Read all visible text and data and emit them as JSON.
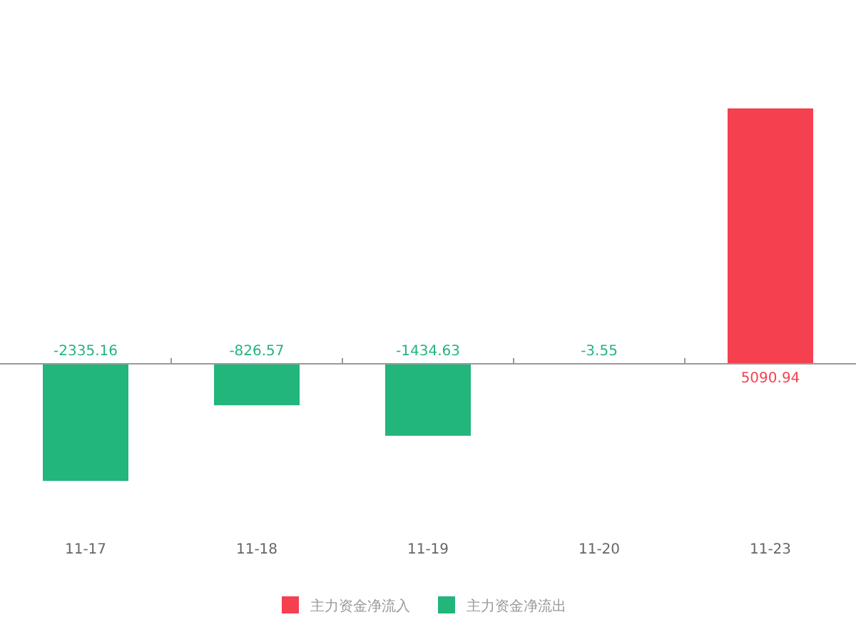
{
  "chart_data": {
    "type": "bar",
    "stacked": true,
    "data_labels": true,
    "legend": "bottom",
    "grid": false,
    "categories": [
      "11-17",
      "11-18",
      "11-19",
      "11-20",
      "11-23"
    ],
    "series": [
      {
        "name": "主力资金净流入",
        "color": "#f5404f",
        "values": [
          null,
          null,
          null,
          null,
          5090.94
        ]
      },
      {
        "name": "主力资金净流出",
        "color": "#22b57c",
        "values": [
          -2335.16,
          -826.57,
          -1434.63,
          -3.55,
          null
        ]
      }
    ]
  }
}
